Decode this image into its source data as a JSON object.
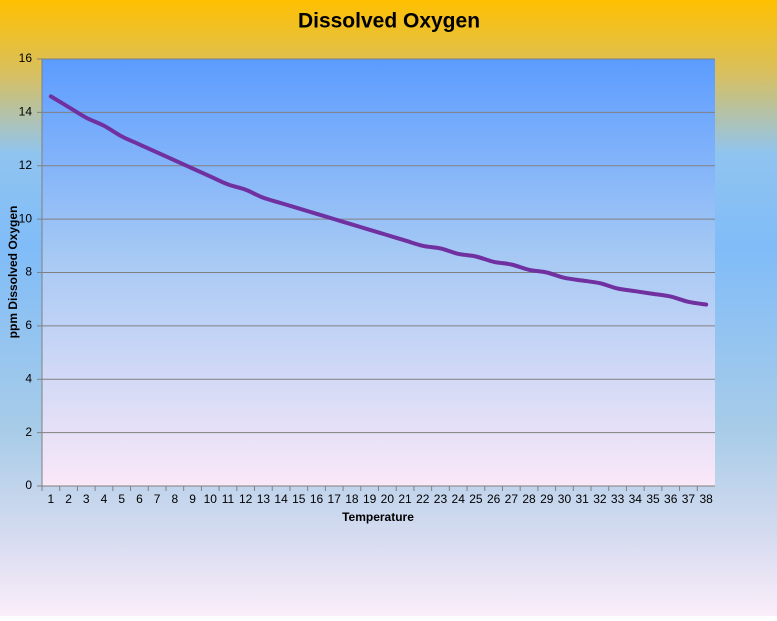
{
  "chart_data": {
    "type": "line",
    "title": "Dissolved Oxygen",
    "x_label": "Temperature",
    "y_label": "ppm Dissolved Oxygen",
    "categories": [
      "1",
      "2",
      "3",
      "4",
      "5",
      "6",
      "7",
      "8",
      "9",
      "10",
      "11",
      "12",
      "13",
      "14",
      "15",
      "16",
      "17",
      "18",
      "19",
      "20",
      "21",
      "22",
      "23",
      "24",
      "25",
      "26",
      "27",
      "28",
      "29",
      "30",
      "31",
      "32",
      "33",
      "34",
      "35",
      "36",
      "37",
      "38"
    ],
    "values": [
      14.6,
      14.2,
      13.8,
      13.5,
      13.1,
      12.8,
      12.5,
      12.2,
      11.9,
      11.6,
      11.3,
      11.1,
      10.8,
      10.6,
      10.4,
      10.2,
      10.0,
      9.8,
      9.6,
      9.4,
      9.2,
      9.0,
      8.9,
      8.7,
      8.6,
      8.4,
      8.3,
      8.1,
      8.0,
      7.8,
      7.7,
      7.6,
      7.4,
      7.3,
      7.2,
      7.1,
      6.9,
      6.8
    ],
    "color": "#7030a0",
    "ylim": [
      0,
      16
    ],
    "yticks": [
      0,
      2,
      4,
      6,
      8,
      10,
      12,
      14,
      16
    ],
    "grid": true
  }
}
